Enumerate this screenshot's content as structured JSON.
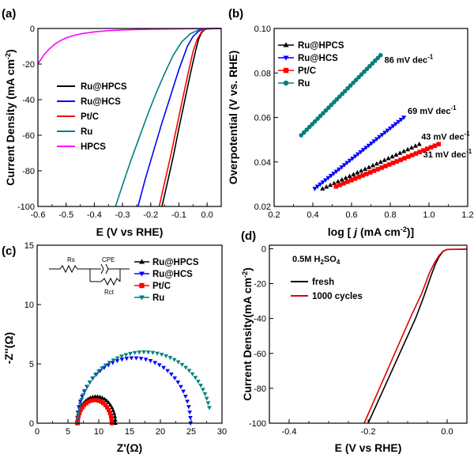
{
  "chart_data": [
    {
      "panel": "(a)",
      "type": "line",
      "xlabel": "E (V vs RHE)",
      "ylabel": "Current Density (mA cm-2)",
      "xlim": [
        -0.6,
        0.05
      ],
      "ylim": [
        -100,
        0
      ],
      "xticks": [
        "-0.6",
        "-0.5",
        "-0.4",
        "-0.3",
        "-0.2",
        "-0.1",
        "0.0"
      ],
      "yticks": [
        "0",
        "-20",
        "-40",
        "-60",
        "-80",
        "-100"
      ],
      "legend_position": "center-left",
      "series": [
        {
          "name": "Ru@HPCS",
          "color": "#000000",
          "x": [
            -0.16,
            -0.14,
            -0.12,
            -0.1,
            -0.08,
            -0.06,
            -0.04,
            -0.03,
            -0.02,
            -0.01,
            0.0,
            0.05
          ],
          "y": [
            -100,
            -86,
            -72,
            -56,
            -41,
            -26,
            -12,
            -6,
            -2.5,
            -0.8,
            -0.2,
            0
          ]
        },
        {
          "name": "Ru@HCS",
          "color": "#0000ff",
          "x": [
            -0.245,
            -0.22,
            -0.19,
            -0.16,
            -0.13,
            -0.1,
            -0.07,
            -0.05,
            -0.03,
            -0.015,
            0.0,
            0.05
          ],
          "y": [
            -100,
            -85,
            -69,
            -53,
            -38,
            -23,
            -10,
            -4.5,
            -1.5,
            -0.5,
            -0.1,
            0
          ]
        },
        {
          "name": "Pt/C",
          "color": "#ff0000",
          "x": [
            -0.17,
            -0.15,
            -0.13,
            -0.11,
            -0.09,
            -0.07,
            -0.05,
            -0.035,
            -0.02,
            -0.01,
            0.0,
            0.05
          ],
          "y": [
            -100,
            -86,
            -72,
            -57,
            -42,
            -27,
            -13,
            -6,
            -2,
            -0.6,
            -0.1,
            0
          ]
        },
        {
          "name": "Ru",
          "color": "#007f7f",
          "x": [
            -0.325,
            -0.3,
            -0.27,
            -0.24,
            -0.21,
            -0.18,
            -0.15,
            -0.12,
            -0.09,
            -0.06,
            -0.03,
            0.0,
            0.05
          ],
          "y": [
            -100,
            -88,
            -74,
            -61,
            -48,
            -36,
            -25,
            -15,
            -7.5,
            -3,
            -0.8,
            -0.2,
            0
          ]
        },
        {
          "name": "HPCS",
          "color": "#ff00ff",
          "x": [
            -0.6,
            -0.58,
            -0.56,
            -0.54,
            -0.52,
            -0.5,
            -0.47,
            -0.44,
            -0.4,
            -0.35,
            -0.3,
            -0.2,
            -0.1,
            0.05
          ],
          "y": [
            -20,
            -15,
            -11.5,
            -8.8,
            -6.8,
            -5.3,
            -3.8,
            -2.8,
            -1.9,
            -1.2,
            -0.8,
            -0.4,
            -0.2,
            0
          ]
        }
      ]
    },
    {
      "panel": "(b)",
      "type": "scatter",
      "xlabel": "log [ j (mA cm-2)]",
      "ylabel": "Overpotential (V vs. RHE)",
      "xlim": [
        0.2,
        1.2
      ],
      "ylim": [
        0.02,
        0.1
      ],
      "xticks": [
        "0.2",
        "0.4",
        "0.6",
        "0.8",
        "1.0",
        "1.2"
      ],
      "yticks": [
        "0.02",
        "0.04",
        "0.06",
        "0.08",
        "0.10"
      ],
      "legend_position": "top-left",
      "series": [
        {
          "name": "Ru@HPCS",
          "color": "#000000",
          "marker": "triangle-up",
          "x0": 0.45,
          "x1": 0.95,
          "y0": 0.028,
          "y1": 0.048,
          "n": 26
        },
        {
          "name": "Ru@HCS",
          "color": "#0000ff",
          "marker": "triangle-down",
          "x0": 0.41,
          "x1": 0.87,
          "y0": 0.028,
          "y1": 0.06,
          "n": 34
        },
        {
          "name": "Pt/C",
          "color": "#ff0000",
          "marker": "square",
          "x0": 0.52,
          "x1": 1.05,
          "y0": 0.029,
          "y1": 0.048,
          "n": 28
        },
        {
          "name": "Ru",
          "color": "#007f7f",
          "marker": "circle",
          "x0": 0.34,
          "x1": 0.75,
          "y0": 0.052,
          "y1": 0.088,
          "n": 30
        }
      ],
      "annotations": [
        {
          "text": "86 mV dec",
          "sup": "-1",
          "x": 0.77,
          "y": 0.086
        },
        {
          "text": "69 mV dec",
          "sup": "-1",
          "x": 0.89,
          "y": 0.063
        },
        {
          "text": "43 mV dec",
          "sup": "-1",
          "x": 0.96,
          "y": 0.0515
        },
        {
          "text": "31 mV dec",
          "sup": "-1",
          "x": 0.97,
          "y": 0.0435
        }
      ]
    },
    {
      "panel": "(c)",
      "type": "scatter",
      "xlabel": "Z'(Ω)",
      "ylabel": "-Z''(Ω)",
      "xlim": [
        0,
        30
      ],
      "ylim": [
        0,
        15
      ],
      "xticks": [
        "0",
        "5",
        "10",
        "15",
        "20",
        "25",
        "30"
      ],
      "yticks": [
        "0",
        "5",
        "10",
        "15"
      ],
      "legend_position": "top-right",
      "circuit_labels": {
        "rs": "Rs",
        "cpe": "CPE",
        "rct": "Rct"
      },
      "series": [
        {
          "name": "Ru@HPCS",
          "color": "#000000",
          "marker": "triangle-up",
          "start": 6.5,
          "end": 12.7,
          "peak": 2.25,
          "arc": 1.0,
          "n": 26
        },
        {
          "name": "Ru@HCS",
          "color": "#0000ff",
          "marker": "triangle-down",
          "start": 6.5,
          "end": 24.9,
          "peak": 5.5,
          "arc": 1.0,
          "n": 38
        },
        {
          "name": "Pt/C",
          "color": "#ff0000",
          "marker": "square",
          "start": 6.6,
          "end": 12.1,
          "peak": 1.95,
          "arc": 1.0,
          "n": 22
        },
        {
          "name": "Ru",
          "color": "#007f7f",
          "marker": "triangle-down",
          "start": 6.6,
          "end": 28.2,
          "peak": 6.0,
          "arc": 0.93,
          "n": 44
        }
      ]
    },
    {
      "panel": "(d)",
      "type": "line",
      "xlabel": "E (V vs RHE)",
      "ylabel": "Current Density(mA cm-2)",
      "xlim": [
        -0.45,
        0.05
      ],
      "ylim": [
        -100,
        2
      ],
      "xticks": [
        "-0.4",
        "-0.2",
        "0.0"
      ],
      "yticks": [
        "0",
        "-20",
        "-40",
        "-60",
        "-80",
        "-100"
      ],
      "legend_position": "top-left",
      "electrolyte_note": "0.5M H2SO4",
      "series": [
        {
          "name": "fresh",
          "color": "#000000",
          "x": [
            -0.2,
            -0.17,
            -0.14,
            -0.11,
            -0.08,
            -0.06,
            -0.04,
            -0.03,
            -0.02,
            -0.01,
            0.0,
            0.05
          ],
          "y": [
            -100,
            -85,
            -70,
            -55,
            -40,
            -28,
            -15,
            -9,
            -4.5,
            -1.5,
            -0.4,
            -0.3
          ]
        },
        {
          "name": "1000 cycles",
          "color": "#e00000",
          "x": [
            -0.21,
            -0.18,
            -0.15,
            -0.12,
            -0.09,
            -0.065,
            -0.045,
            -0.032,
            -0.02,
            -0.01,
            0.0,
            0.05
          ],
          "y": [
            -100,
            -84.5,
            -69,
            -53.5,
            -38,
            -26,
            -14,
            -8,
            -3.8,
            -1.3,
            -0.4,
            -0.3
          ]
        }
      ]
    }
  ]
}
